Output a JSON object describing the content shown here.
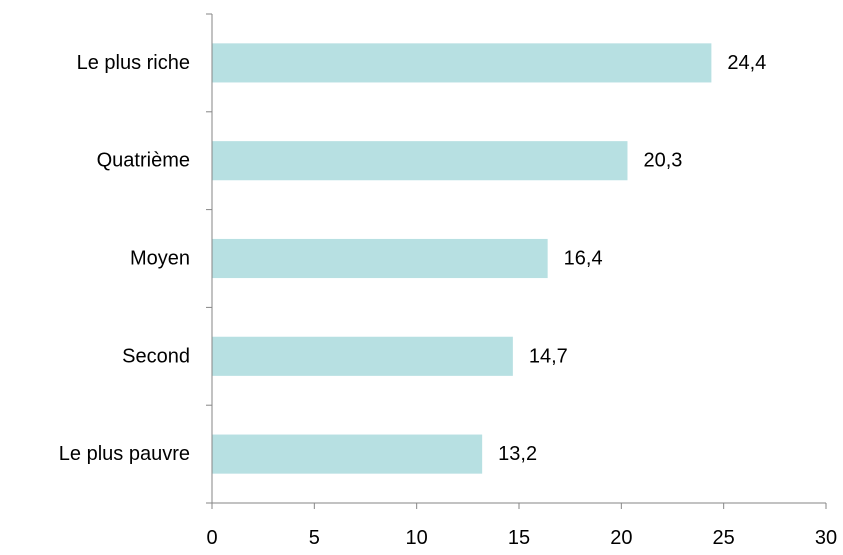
{
  "chart_data": {
    "type": "bar",
    "orientation": "horizontal",
    "categories": [
      "Le plus pauvre",
      "Second",
      "Moyen",
      "Quatrième",
      "Le plus riche"
    ],
    "values": [
      13.2,
      14.7,
      16.4,
      20.3,
      24.4
    ],
    "value_labels": [
      "13,2",
      "14,7",
      "16,4",
      "20,3",
      "24,4"
    ],
    "xlim": [
      0,
      30
    ],
    "x_ticks": [
      "0",
      "5",
      "10",
      "15",
      "20",
      "25",
      "30"
    ],
    "grid": false,
    "legend": "none",
    "bar_color": "#b7e0e2",
    "title": "",
    "xlabel": "",
    "ylabel": ""
  }
}
